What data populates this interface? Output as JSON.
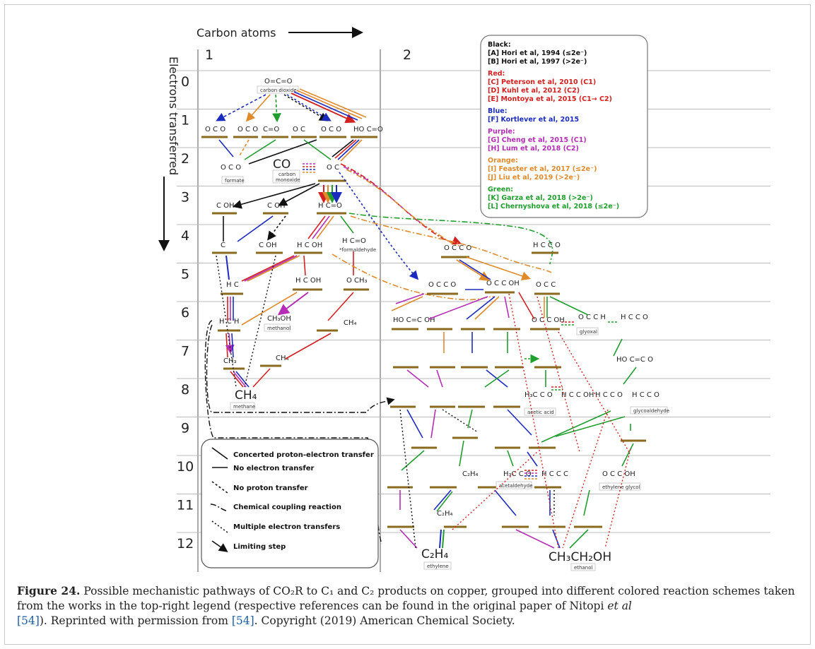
{
  "axes": {
    "x_title": "Carbon atoms",
    "y_title": "Electrons transferred",
    "columns": [
      "1",
      "2"
    ],
    "rows": [
      "0",
      "1",
      "2",
      "3",
      "4",
      "5",
      "6",
      "7",
      "8",
      "9",
      "10",
      "11",
      "12"
    ]
  },
  "legend": {
    "groups": [
      {
        "title": "Black:",
        "color": "#111111",
        "entries": [
          "[A] Hori et al, 1994 (≤2e⁻)",
          "[B] Hori et al, 1997 (>2e⁻)"
        ]
      },
      {
        "title": "Red:",
        "color": "#d42020",
        "entries": [
          "[C] Peterson et al, 2010 (C1)",
          "[D] Kuhl et al, 2012 (C2)",
          "[E] Montoya et al, 2015 (C1→ C2)"
        ]
      },
      {
        "title": "Blue:",
        "color": "#1c2bbf",
        "entries": [
          "[F] Kortlever et al, 2015"
        ]
      },
      {
        "title": "Purple:",
        "color": "#b52db5",
        "entries": [
          "[G] Cheng et al, 2015 (C1)",
          "[H] Lum et al, 2018 (C2)"
        ]
      },
      {
        "title": "Orange:",
        "color": "#e08a2a",
        "entries": [
          "[I] Feaster et al, 2017 (≤2e⁻)",
          "[J] Liu et al, 2019 (>2e⁻)"
        ]
      },
      {
        "title": "Green:",
        "color": "#1f9e2e",
        "entries": [
          "[K] Garza et al, 2018 (>2e⁻)",
          "[L] Chernyshova et al, 2018 (≤2e⁻)"
        ]
      }
    ]
  },
  "key": {
    "items": [
      "Concerted proton-electron transfer",
      "No electron transfer",
      "No proton transfer",
      "Chemical coupling reaction",
      "Multiple electron transfers",
      "Limiting step"
    ]
  },
  "species": {
    "co2": "O=C=O",
    "co2_label": "carbon dioxide",
    "co": "CO",
    "co_label_1": "carbon",
    "co_label_2": "monoxide",
    "formate_label": "formate",
    "formaldehyde_label": "*formaldehyde",
    "methanol": "CH₃OH",
    "methanol_label": "methanol",
    "methane": "CH₄",
    "methane_label": "methane",
    "ch4_a": "CH₄",
    "ch4_b": "CH₄",
    "ch3": "CH₃",
    "glyoxal_label": "glyoxal",
    "acetic_label": "acetic acid",
    "glycolaldehyde_label": "glycoaldehyde",
    "acetaldehyde_label": "acetaldehyde",
    "ethylene_glycol_label": "ethylene glycol",
    "ethylene": "C₂H₄",
    "ethylene_label": "ethylene",
    "c2h4_a": "C₂H₄",
    "c2h4_b": "C₂H₄",
    "ethanol": "CH₃CH₂OH",
    "ethanol_label": "ethanol"
  },
  "colors": {
    "black": "#111111",
    "red": "#d42020",
    "blue": "#1c2bbf",
    "purple": "#b52db5",
    "orange": "#e08a2a",
    "green": "#1f9e2e",
    "surface": "#8a6a1e"
  },
  "caption": {
    "label": "Figure 24.",
    "text_1": " Possible mechanistic pathways of CO₂R to C₁ and C₂ products on copper, grouped into different colored reaction schemes taken from the works in the top-right legend (respective references can be found in the original paper of Nitopi ",
    "etal": "et al",
    "ref_1": "[54]",
    "text_2": "). Reprinted with permission from ",
    "ref_2": "[54]",
    "text_3": ". Copyright (2019) American Chemical Society."
  }
}
